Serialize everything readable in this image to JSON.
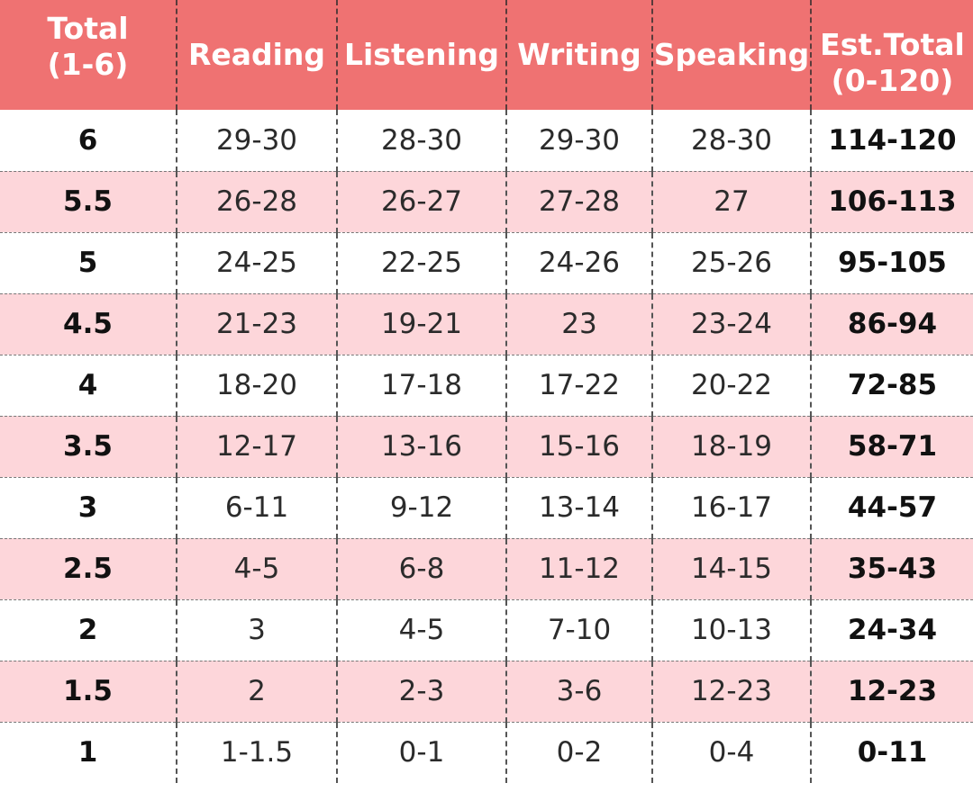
{
  "colors": {
    "header_bg": "#ef7272",
    "stripe_bg": "#fdd6da",
    "header_text": "#ffffff"
  },
  "headers": {
    "total": [
      "Total",
      "(1-6)"
    ],
    "reading": "Reading",
    "listening": "Listening",
    "writing": "Writing",
    "speaking": "Speaking",
    "est_total": [
      "Est.Total",
      "(0-120)"
    ]
  },
  "rows": [
    {
      "total": "6",
      "reading": "29-30",
      "listening": "28-30",
      "writing": "29-30",
      "speaking": "28-30",
      "est_total": "114-120"
    },
    {
      "total": "5.5",
      "reading": "26-28",
      "listening": "26-27",
      "writing": "27-28",
      "speaking": "27",
      "est_total": "106-113"
    },
    {
      "total": "5",
      "reading": "24-25",
      "listening": "22-25",
      "writing": "24-26",
      "speaking": "25-26",
      "est_total": "95-105"
    },
    {
      "total": "4.5",
      "reading": "21-23",
      "listening": "19-21",
      "writing": "23",
      "speaking": "23-24",
      "est_total": "86-94"
    },
    {
      "total": "4",
      "reading": "18-20",
      "listening": "17-18",
      "writing": "17-22",
      "speaking": "20-22",
      "est_total": "72-85"
    },
    {
      "total": "3.5",
      "reading": "12-17",
      "listening": "13-16",
      "writing": "15-16",
      "speaking": "18-19",
      "est_total": "58-71"
    },
    {
      "total": "3",
      "reading": "6-11",
      "listening": "9-12",
      "writing": "13-14",
      "speaking": "16-17",
      "est_total": "44-57"
    },
    {
      "total": "2.5",
      "reading": "4-5",
      "listening": "6-8",
      "writing": "11-12",
      "speaking": "14-15",
      "est_total": "35-43"
    },
    {
      "total": "2",
      "reading": "3",
      "listening": "4-5",
      "writing": "7-10",
      "speaking": "10-13",
      "est_total": "24-34"
    },
    {
      "total": "1.5",
      "reading": "2",
      "listening": "2-3",
      "writing": "3-6",
      "speaking": "12-23",
      "est_total": "12-23"
    },
    {
      "total": "1",
      "reading": "1-1.5",
      "listening": "0-1",
      "writing": "0-2",
      "speaking": "0-4",
      "est_total": "0-11"
    }
  ]
}
